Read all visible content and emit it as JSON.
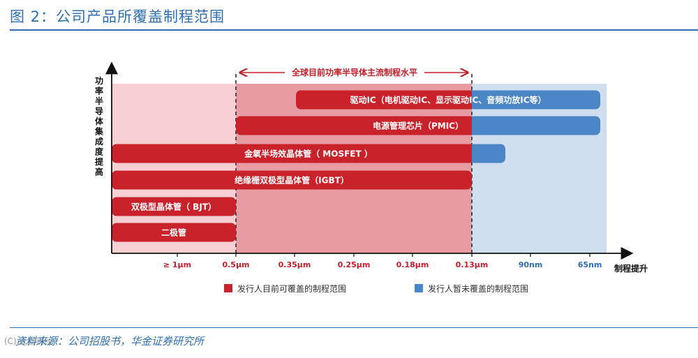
{
  "header": {
    "title": "图 2：公司产品所覆盖制程范围"
  },
  "axes": {
    "y_label": "功率半导体集成度提高",
    "x_label": "制程提升"
  },
  "range_label": "全球目前功率半导体主流制程水平",
  "ticks": [
    "≥ 1μm",
    "0.5μm",
    "0.35μm",
    "0.25μm",
    "0.18μm",
    "0.13μm",
    "90nm",
    "65nm"
  ],
  "bars": [
    {
      "label": "驱动IC（电机驱动IC、显示驱动IC、音频功放IC等）",
      "from": "0.35μm",
      "to": "65nm"
    },
    {
      "label": "电源管理芯片（PMIC）",
      "from": "0.5μm",
      "to": "65nm"
    },
    {
      "label": "金氧半场效晶体管（ MOSFET ）",
      "from": "≥ 1μm",
      "to": "90nm"
    },
    {
      "label": "绝缘栅双极型晶体管（IGBT）",
      "from": "≥ 1μm",
      "to": "0.13μm"
    },
    {
      "label": "双极型晶体管（ BJT）",
      "from": "≥ 1μm",
      "to": "0.5μm"
    },
    {
      "label": "二极管",
      "from": "≥ 1μm",
      "to": "0.5μm"
    }
  ],
  "legend": {
    "covered": "发行人目前可覆盖的制程范围",
    "not_covered": "发行人暂未覆盖的制程范围"
  },
  "colors": {
    "red": "#c9222b",
    "blue": "#4a86c5",
    "title_blue": "#2f6fb0"
  },
  "footer": {
    "source": "资料来源：公司招股书，华金证券研究所",
    "watermark": "(C) 大猫财经"
  }
}
